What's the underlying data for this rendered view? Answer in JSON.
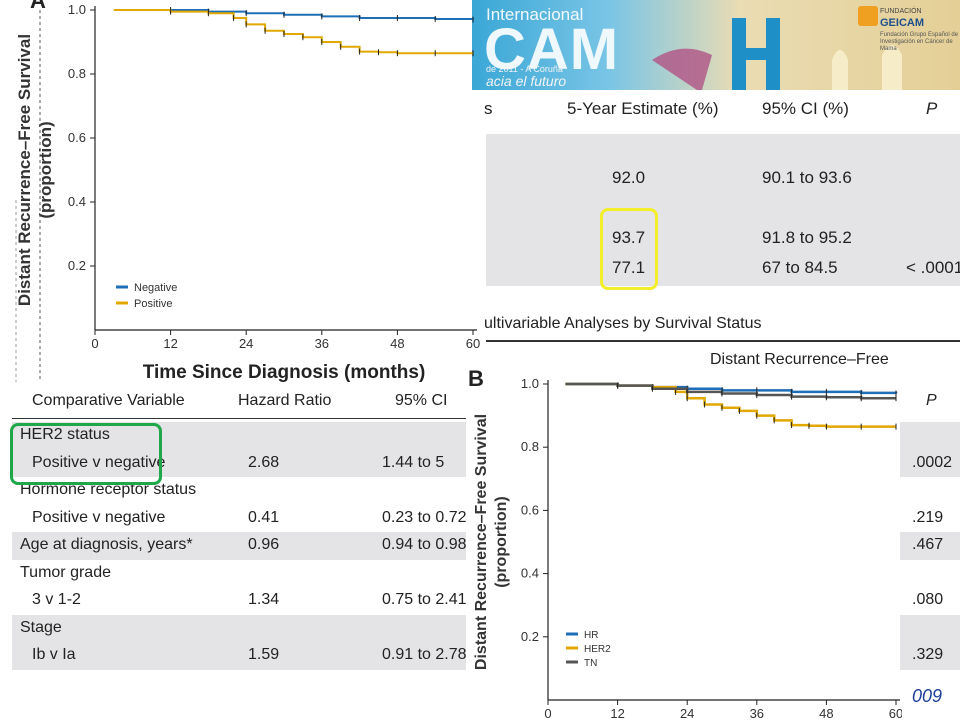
{
  "banner": {
    "title_line1": "Internacional",
    "title_main": "CAM",
    "title_date": "de 2011 - A Coruña",
    "title_tag": "acia el futuro",
    "logo_small": "FUNDACIÓN",
    "logo_name": "GEICAM",
    "logo_tagline": "Fundación Grupo Español de Investigación en Cáncer de Mama"
  },
  "estimate_table": {
    "headers": [
      "s",
      "5-Year Estimate (%)",
      "95% CI (%)",
      "P"
    ],
    "rows": [
      {
        "est": "92.0",
        "ci": "90.1 to 93.6",
        "p": ""
      },
      {
        "est": "93.7",
        "ci": "91.8 to 95.2",
        "p": ""
      },
      {
        "est": "77.1",
        "ci": "67 to 84.5",
        "p": "< .0001"
      }
    ]
  },
  "multivariable": {
    "caption": "ultivariable Analyses by Survival Status",
    "group_header": "Distant Recurrence–Free",
    "headers": [
      "Comparative Variable",
      "Hazard Ratio",
      "95% CI",
      "P"
    ],
    "rows": [
      {
        "label": "HER2 status",
        "hr": "",
        "ci": "",
        "p": ""
      },
      {
        "label": "Positive v negative",
        "hr": "2.68",
        "ci": "1.44 to 5",
        "p": ".0002"
      },
      {
        "label": "Hormone receptor status",
        "hr": "",
        "ci": "",
        "p": ""
      },
      {
        "label": "Positive v negative",
        "hr": "0.41",
        "ci": "0.23 to 0.72",
        "p": ".219"
      },
      {
        "label": "Age at diagnosis, years*",
        "hr": "0.96",
        "ci": "0.94 to 0.98",
        "p": ".467"
      },
      {
        "label": "Tumor grade",
        "hr": "",
        "ci": "",
        "p": ""
      },
      {
        "label": "3 v 1-2",
        "hr": "1.34",
        "ci": "0.75 to 2.41",
        "p": ".080"
      },
      {
        "label": "Stage",
        "hr": "",
        "ci": "",
        "p": ""
      },
      {
        "label": "Ib v Ia",
        "hr": "1.59",
        "ci": "0.91 to 2.78",
        "p": ".329"
      }
    ]
  },
  "footer_fragment": "009",
  "colors": {
    "blue": "#1f6fb8",
    "gold": "#e0a800",
    "gray": "#555555",
    "yellow_box": "#f3ee2a",
    "green_box": "#1fa84a"
  },
  "chart_data": [
    {
      "type": "line",
      "panel_letter": "A",
      "xlabel": "Time Since Diagnosis (months)",
      "ylabel": "Distant Recurrence–Free Survival (proportion)",
      "xlim": [
        0,
        60
      ],
      "ylim": [
        0,
        1.0
      ],
      "x_ticks": [
        "0",
        "12",
        "24",
        "36",
        "48",
        "60"
      ],
      "y_ticks": [
        "0.2",
        "0.4",
        "0.6",
        "0.8",
        "1.0"
      ],
      "legend": "bottom-left",
      "series": [
        {
          "name": "Negative",
          "color": "#1f6fb8",
          "x": [
            3,
            12,
            18,
            24,
            30,
            36,
            42,
            48,
            54,
            60
          ],
          "y": [
            1.0,
            1.0,
            0.995,
            0.99,
            0.985,
            0.98,
            0.975,
            0.975,
            0.972,
            0.97
          ]
        },
        {
          "name": "Positive",
          "color": "#e0a800",
          "x": [
            3,
            12,
            18,
            22,
            24,
            27,
            30,
            33,
            36,
            39,
            42,
            45,
            48,
            54,
            60
          ],
          "y": [
            1.0,
            0.995,
            0.99,
            0.975,
            0.955,
            0.935,
            0.925,
            0.915,
            0.9,
            0.885,
            0.87,
            0.868,
            0.865,
            0.865,
            0.865
          ]
        }
      ]
    },
    {
      "type": "line",
      "panel_letter": "B",
      "xlabel": "",
      "ylabel": "Distant Recurrence–Free Survival (proportion)",
      "xlim": [
        0,
        60
      ],
      "ylim": [
        0,
        1.0
      ],
      "x_ticks": [
        "0",
        "12",
        "24",
        "36",
        "48",
        "60"
      ],
      "y_ticks": [
        "0.2",
        "0.4",
        "0.6",
        "0.8",
        "1.0"
      ],
      "legend": "bottom-left",
      "series": [
        {
          "name": "HR",
          "color": "#1f6fb8",
          "x": [
            3,
            12,
            18,
            24,
            30,
            36,
            42,
            48,
            54,
            60
          ],
          "y": [
            1.0,
            0.995,
            0.99,
            0.985,
            0.98,
            0.98,
            0.975,
            0.975,
            0.972,
            0.97
          ]
        },
        {
          "name": "HER2",
          "color": "#e0a800",
          "x": [
            3,
            12,
            18,
            22,
            24,
            27,
            30,
            33,
            36,
            39,
            42,
            45,
            48,
            54,
            60
          ],
          "y": [
            1.0,
            0.995,
            0.99,
            0.975,
            0.955,
            0.935,
            0.925,
            0.915,
            0.9,
            0.885,
            0.87,
            0.868,
            0.865,
            0.865,
            0.865
          ]
        },
        {
          "name": "TN",
          "color": "#555555",
          "x": [
            3,
            12,
            18,
            24,
            30,
            36,
            42,
            48,
            54,
            60
          ],
          "y": [
            1.0,
            0.995,
            0.985,
            0.975,
            0.97,
            0.965,
            0.96,
            0.958,
            0.955,
            0.955
          ]
        }
      ]
    }
  ]
}
